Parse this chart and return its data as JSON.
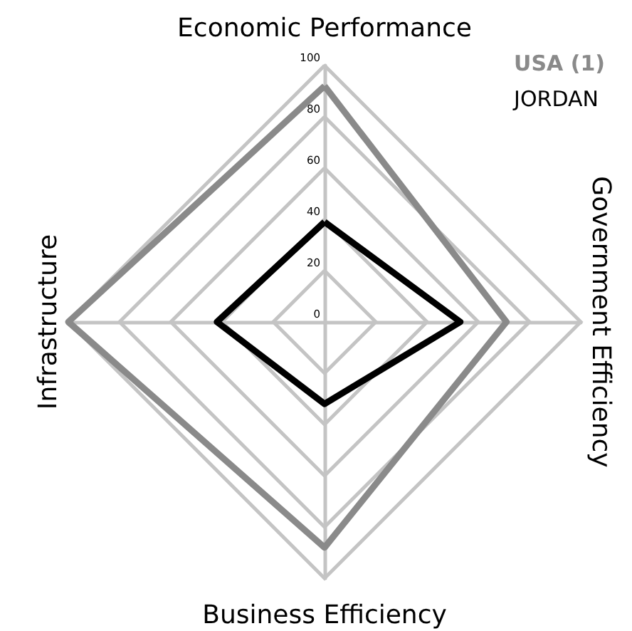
{
  "chart_data": {
    "type": "radar",
    "categories": [
      "Economic Performance",
      "Government Efficiency",
      "Business Efficiency",
      "Infrastructure"
    ],
    "series": [
      {
        "name": "USA (1)",
        "color": "#8a8a8a",
        "values": [
          92,
          71,
          88,
          100
        ]
      },
      {
        "name": "JORDAN",
        "color": "#000000",
        "values": [
          39,
          53,
          32,
          42
        ]
      }
    ],
    "ylim": [
      0,
      100
    ],
    "yticks": [
      0,
      20,
      40,
      60,
      80,
      100
    ],
    "legend": "top right",
    "marker": "none",
    "line_style": "solid",
    "grid": true
  }
}
